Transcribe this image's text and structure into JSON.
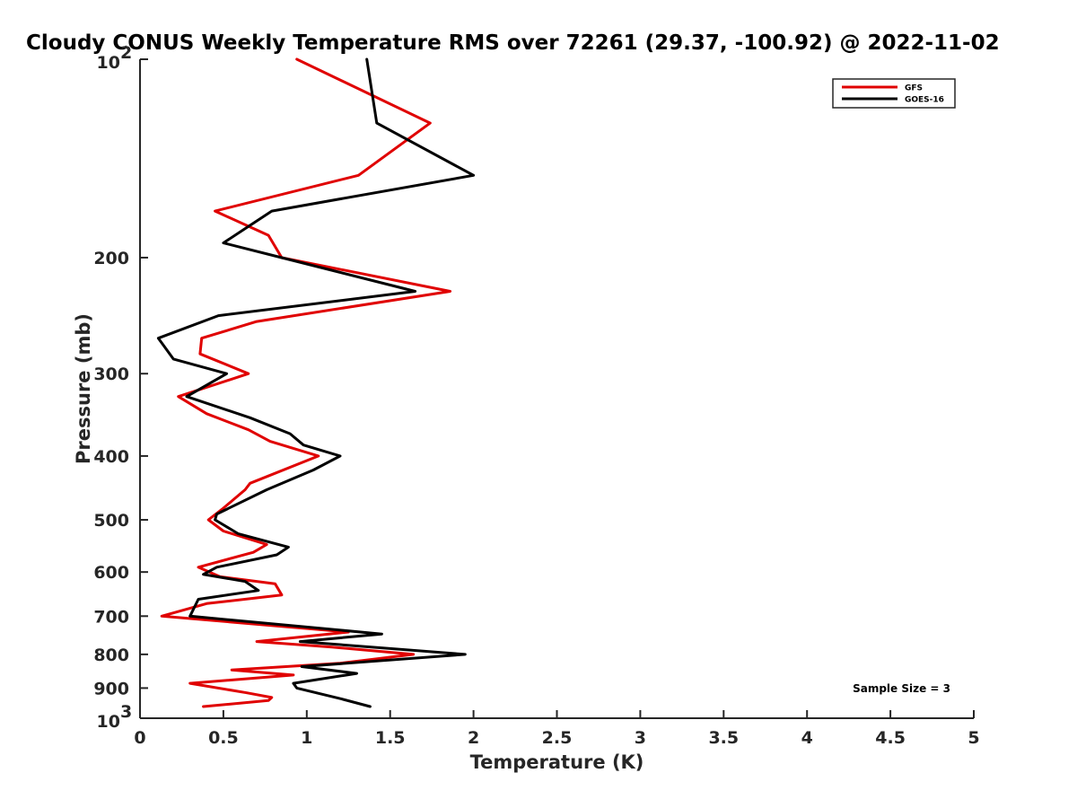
{
  "chart_data": {
    "type": "line",
    "title": "Cloudy CONUS Weekly Temperature RMS over 72261 (29.37, -100.92) @ 2022-11-02",
    "xlabel": "Temperature (K)",
    "ylabel": "Pressure (mb)",
    "xlim": [
      0,
      5
    ],
    "ylim": [
      100,
      1000
    ],
    "y_scale": "log",
    "y_reversed": true,
    "grid": false,
    "legend_position": "top-right",
    "x_ticks": [
      {
        "value": 0,
        "label": "0"
      },
      {
        "value": 0.5,
        "label": "0.5"
      },
      {
        "value": 1,
        "label": "1"
      },
      {
        "value": 1.5,
        "label": "1.5"
      },
      {
        "value": 2,
        "label": "2"
      },
      {
        "value": 2.5,
        "label": "2.5"
      },
      {
        "value": 3,
        "label": "3"
      },
      {
        "value": 3.5,
        "label": "3.5"
      },
      {
        "value": 4,
        "label": "4"
      },
      {
        "value": 4.5,
        "label": "4.5"
      },
      {
        "value": 5,
        "label": "5"
      }
    ],
    "y_ticks": [
      {
        "value": 100,
        "base": "10",
        "exp": "2"
      },
      {
        "value": 200,
        "label": "200"
      },
      {
        "value": 300,
        "label": "300"
      },
      {
        "value": 400,
        "label": "400"
      },
      {
        "value": 500,
        "label": "500"
      },
      {
        "value": 600,
        "label": "600"
      },
      {
        "value": 700,
        "label": "700"
      },
      {
        "value": 800,
        "label": "800"
      },
      {
        "value": 900,
        "label": "900"
      },
      {
        "value": 1000,
        "base": "10",
        "exp": "3"
      }
    ],
    "annotation": "Sample Size = 3",
    "series": [
      {
        "name": "GFS",
        "color": "#e00000",
        "points": [
          [
            0.94,
            100
          ],
          [
            1.74,
            125
          ],
          [
            1.31,
            150
          ],
          [
            0.45,
            170
          ],
          [
            0.77,
            185
          ],
          [
            0.85,
            200
          ],
          [
            1.86,
            225
          ],
          [
            0.7,
            250
          ],
          [
            0.37,
            265
          ],
          [
            0.36,
            280
          ],
          [
            0.65,
            300
          ],
          [
            0.23,
            325
          ],
          [
            0.4,
            345
          ],
          [
            0.65,
            365
          ],
          [
            0.78,
            380
          ],
          [
            1.07,
            400
          ],
          [
            0.66,
            440
          ],
          [
            0.63,
            450
          ],
          [
            0.5,
            480
          ],
          [
            0.41,
            500
          ],
          [
            0.5,
            520
          ],
          [
            0.76,
            545
          ],
          [
            0.68,
            560
          ],
          [
            0.35,
            590
          ],
          [
            0.48,
            610
          ],
          [
            0.81,
            625
          ],
          [
            0.85,
            650
          ],
          [
            0.4,
            670
          ],
          [
            0.13,
            700
          ],
          [
            1.25,
            740
          ],
          [
            0.7,
            765
          ],
          [
            1.15,
            780
          ],
          [
            1.64,
            800
          ],
          [
            1.2,
            825
          ],
          [
            0.55,
            845
          ],
          [
            0.92,
            860
          ],
          [
            0.3,
            885
          ],
          [
            0.64,
            915
          ],
          [
            0.79,
            930
          ],
          [
            0.77,
            940
          ],
          [
            0.38,
            960
          ]
        ]
      },
      {
        "name": "GOES-16",
        "color": "#000000",
        "points": [
          [
            1.36,
            100
          ],
          [
            1.42,
            125
          ],
          [
            2.0,
            150
          ],
          [
            0.79,
            170
          ],
          [
            0.5,
            190
          ],
          [
            0.85,
            200
          ],
          [
            1.65,
            225
          ],
          [
            0.47,
            245
          ],
          [
            0.11,
            265
          ],
          [
            0.2,
            285
          ],
          [
            0.52,
            300
          ],
          [
            0.28,
            325
          ],
          [
            0.66,
            350
          ],
          [
            0.9,
            370
          ],
          [
            0.98,
            385
          ],
          [
            1.2,
            400
          ],
          [
            1.04,
            420
          ],
          [
            0.76,
            450
          ],
          [
            0.46,
            490
          ],
          [
            0.45,
            500
          ],
          [
            0.59,
            525
          ],
          [
            0.89,
            550
          ],
          [
            0.82,
            565
          ],
          [
            0.46,
            590
          ],
          [
            0.38,
            605
          ],
          [
            0.63,
            620
          ],
          [
            0.71,
            640
          ],
          [
            0.35,
            660
          ],
          [
            0.3,
            700
          ],
          [
            1.45,
            745
          ],
          [
            0.96,
            765
          ],
          [
            1.95,
            800
          ],
          [
            0.97,
            835
          ],
          [
            1.3,
            855
          ],
          [
            0.92,
            885
          ],
          [
            0.94,
            900
          ],
          [
            1.21,
            935
          ],
          [
            1.38,
            960
          ]
        ]
      }
    ]
  }
}
